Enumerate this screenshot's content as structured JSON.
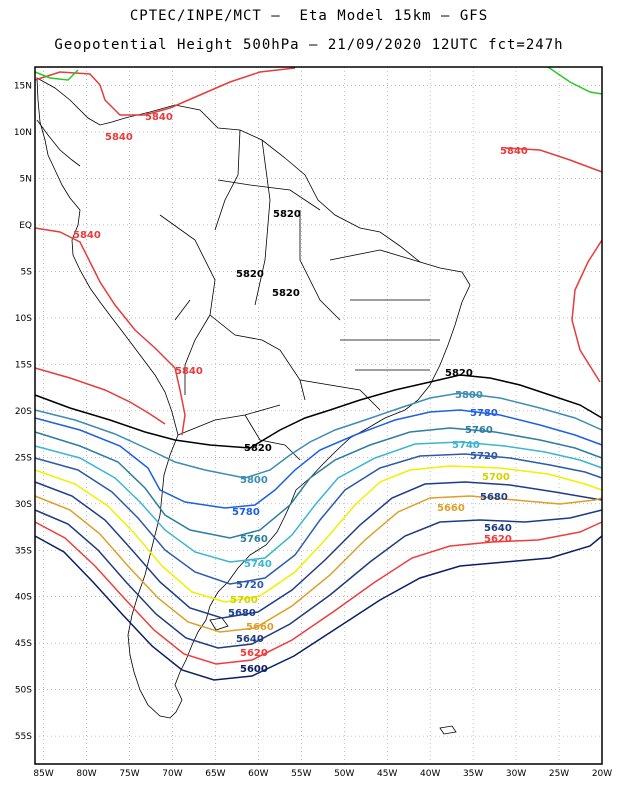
{
  "header": {
    "title_line1": "CPTEC/INPE/MCT –  Eta Model 15km – GFS",
    "title_line2": "Geopotential Height 500hPa – 21/09/2020 12UTC fct=247h"
  },
  "map_data": {
    "type": "contour-map",
    "variable": "Geopotential Height 500hPa",
    "lat_range": [
      -58,
      17
    ],
    "lon_range": [
      -86,
      -20
    ],
    "grid": true,
    "lat_labels": [
      "15N",
      "10N",
      "5N",
      "EQ",
      "5S",
      "10S",
      "15S",
      "20S",
      "25S",
      "30S",
      "35S",
      "40S",
      "45S",
      "50S",
      "55S"
    ],
    "lon_labels": [
      "85W",
      "80W",
      "75W",
      "70W",
      "65W",
      "60W",
      "55W",
      "50W",
      "45W",
      "40W",
      "35W",
      "30W",
      "25W",
      "20W"
    ],
    "contour_levels": [
      {
        "value": "5840",
        "color": "#e63c3c"
      },
      {
        "value": "5820",
        "color": "#000000"
      },
      {
        "value": "5800",
        "color": "#3c8cb4"
      },
      {
        "value": "5780",
        "color": "#1e5fe6"
      },
      {
        "value": "5760",
        "color": "#2d7da0"
      },
      {
        "value": "5740",
        "color": "#3cb4d2"
      },
      {
        "value": "5720",
        "color": "#2d5aaa"
      },
      {
        "value": "5700",
        "color": "#f0f000"
      },
      {
        "value": "5680",
        "color": "#1e3c8c"
      },
      {
        "value": "5660",
        "color": "#dca028"
      },
      {
        "value": "5640",
        "color": "#1e3c7d"
      },
      {
        "value": "5620",
        "color": "#f03c3c"
      },
      {
        "value": "5600",
        "color": "#0a1e64"
      }
    ],
    "contour_labels": {
      "red_5840": [
        "5840",
        "5840",
        "5840",
        "5840",
        "5840"
      ],
      "black_5820": [
        "5820",
        "5820",
        "5820",
        "5820",
        "5820"
      ],
      "c5800": [
        "5800",
        "5800"
      ],
      "c5780": [
        "5780",
        "5780"
      ],
      "c5760": [
        "5760",
        "5760"
      ],
      "c5740": [
        "5740",
        "5740"
      ],
      "c5720": [
        "5720",
        "5720"
      ],
      "c5700": [
        "5700",
        "5700"
      ],
      "c5680": [
        "5680",
        "5680"
      ],
      "c5660": [
        "5660",
        "5660"
      ],
      "c5640": [
        "5640",
        "5640"
      ],
      "c5620": [
        "5620",
        "5620"
      ],
      "c5600": [
        "5600"
      ]
    }
  }
}
